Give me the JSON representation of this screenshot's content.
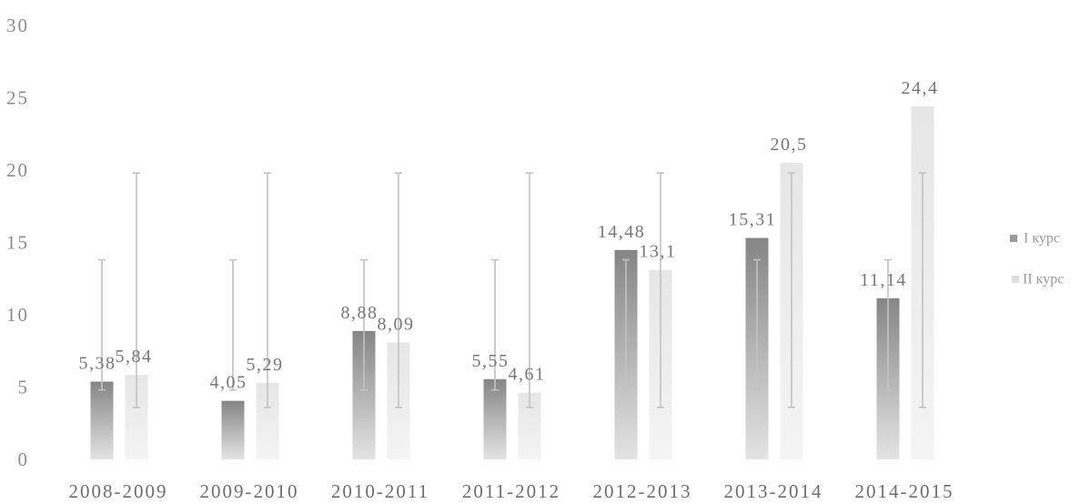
{
  "chart_data": {
    "type": "bar",
    "categories": [
      "2008-2009",
      "2009-2010",
      "2010-2011",
      "2011-2012",
      "2012-2013",
      "2013-2014",
      "2014-2015"
    ],
    "series": [
      {
        "name": "I курс",
        "values": [
          5.38,
          4.05,
          8.88,
          5.55,
          14.48,
          15.31,
          11.14
        ],
        "labels": [
          "5,38",
          "4,05",
          "8,88",
          "5,55",
          "14,48",
          "15,31",
          "11,14"
        ],
        "color_top": "#858585",
        "color_bottom": "#e3e3e3",
        "legend_color": "#9a9a9a",
        "error_bar": {
          "low": 4.8,
          "high": 13.8
        }
      },
      {
        "name": "II курс",
        "values": [
          5.84,
          5.29,
          8.09,
          4.61,
          13.1,
          20.5,
          24.4
        ],
        "labels": [
          "5,84",
          "5,29",
          "8,09",
          "4,61",
          "13,1",
          "20,5",
          "24,4"
        ],
        "color_top": "#e6e6e6",
        "color_bottom": "#f4f4f4",
        "legend_color": "#dedede",
        "error_bar": {
          "low": 3.6,
          "high": 19.8
        }
      }
    ],
    "yticks": [
      "0",
      "5",
      "10",
      "15",
      "20",
      "25",
      "30"
    ],
    "ylim": [
      0,
      30
    ],
    "grid": false,
    "legend": "right",
    "error_bar_color": "#c2c2c2"
  }
}
